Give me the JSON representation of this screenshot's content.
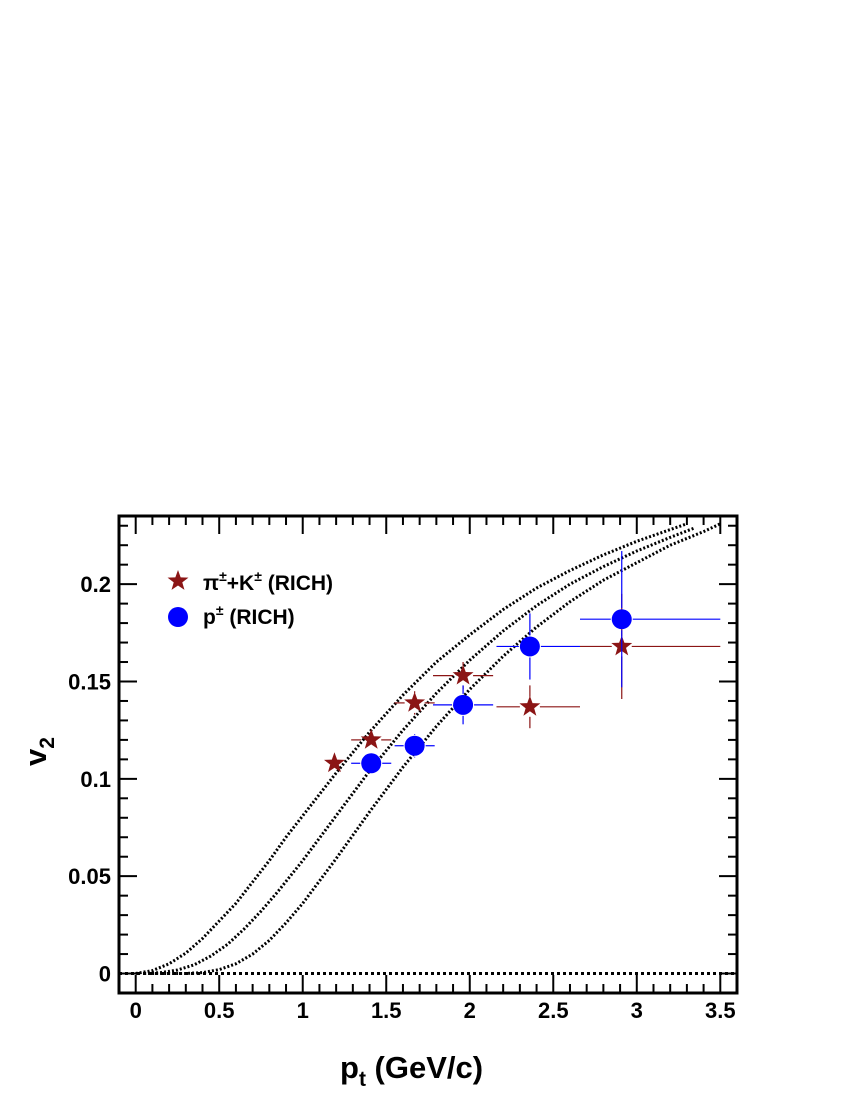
{
  "chart_data": {
    "type": "scatter",
    "title": "",
    "xlabel_main": "p",
    "xlabel_sub": "t",
    "xlabel_rest": " (GeV/c)",
    "ylabel_main": "v",
    "ylabel_sub": "2",
    "xlim": [
      -0.1,
      3.6
    ],
    "ylim": [
      -0.01,
      0.235
    ],
    "x_ticks": [
      0,
      0.5,
      1,
      1.5,
      2,
      2.5,
      3,
      3.5
    ],
    "x_tick_labels": [
      "0",
      "0.5",
      "1",
      "1.5",
      "2",
      "2.5",
      "3",
      "3.5"
    ],
    "y_ticks": [
      0,
      0.05,
      0.1,
      0.15,
      0.2
    ],
    "y_tick_labels": [
      "0",
      "0.05",
      "0.1",
      "0.15",
      "0.2"
    ],
    "grid": false,
    "legend_position": "top-left",
    "series": [
      {
        "name_main": "π",
        "name_sup1": "±",
        "name_mid": "+K",
        "name_sup2": "±",
        "name_rest": " (RICH)",
        "marker": "star",
        "color": "#8b1515",
        "points": [
          {
            "x": 1.19,
            "y": 0.108,
            "xerr": [
              0.06,
              0.06
            ],
            "yerr": 0.004
          },
          {
            "x": 1.41,
            "y": 0.12,
            "xerr": [
              0.12,
              0.12
            ],
            "yerr": 0.005
          },
          {
            "x": 1.67,
            "y": 0.139,
            "xerr": [
              0.12,
              0.12
            ],
            "yerr": 0.006
          },
          {
            "x": 1.96,
            "y": 0.153,
            "xerr": [
              0.18,
              0.18
            ],
            "yerr": 0.007
          },
          {
            "x": 2.36,
            "y": 0.137,
            "xerr": [
              0.2,
              0.3
            ],
            "yerr": 0.011
          },
          {
            "x": 2.91,
            "y": 0.168,
            "xerr": [
              0.25,
              0.59
            ],
            "yerr": 0.027
          }
        ]
      },
      {
        "name_main": "p",
        "name_sup1": "±",
        "name_rest": " (RICH)",
        "marker": "circle",
        "color": "#0000ff",
        "points": [
          {
            "x": 1.41,
            "y": 0.108,
            "xerr": [
              0.12,
              0.12
            ],
            "yerr": 0.004
          },
          {
            "x": 1.67,
            "y": 0.117,
            "xerr": [
              0.12,
              0.12
            ],
            "yerr": 0.006
          },
          {
            "x": 1.96,
            "y": 0.138,
            "xerr": [
              0.18,
              0.18
            ],
            "yerr": 0.01
          },
          {
            "x": 2.36,
            "y": 0.168,
            "xerr": [
              0.2,
              0.3
            ],
            "yerr": 0.017
          },
          {
            "x": 2.91,
            "y": 0.182,
            "xerr": [
              0.25,
              0.59
            ],
            "yerr": 0.035
          }
        ]
      }
    ],
    "curves": [
      {
        "name": "dotted-curve-1",
        "points": [
          [
            0.0,
            0.0
          ],
          [
            0.1,
            0.0015
          ],
          [
            0.2,
            0.005
          ],
          [
            0.3,
            0.0105
          ],
          [
            0.4,
            0.018
          ],
          [
            0.5,
            0.027
          ],
          [
            0.6,
            0.036
          ],
          [
            0.7,
            0.047
          ],
          [
            0.8,
            0.058
          ],
          [
            0.9,
            0.07
          ],
          [
            1.0,
            0.081
          ],
          [
            1.2,
            0.103
          ],
          [
            1.4,
            0.124
          ],
          [
            1.6,
            0.143
          ],
          [
            1.8,
            0.16
          ],
          [
            2.0,
            0.174
          ],
          [
            2.2,
            0.187
          ],
          [
            2.4,
            0.198
          ],
          [
            2.6,
            0.207
          ],
          [
            2.8,
            0.215
          ],
          [
            3.0,
            0.222
          ],
          [
            3.2,
            0.228
          ],
          [
            3.3,
            0.231
          ]
        ]
      },
      {
        "name": "dotted-curve-2",
        "points": [
          [
            0.05,
            0.0
          ],
          [
            0.15,
            0.0005
          ],
          [
            0.25,
            0.0018
          ],
          [
            0.35,
            0.0045
          ],
          [
            0.45,
            0.009
          ],
          [
            0.55,
            0.015
          ],
          [
            0.65,
            0.023
          ],
          [
            0.75,
            0.032
          ],
          [
            0.85,
            0.042
          ],
          [
            1.0,
            0.058
          ],
          [
            1.2,
            0.081
          ],
          [
            1.4,
            0.104
          ],
          [
            1.6,
            0.125
          ],
          [
            1.8,
            0.144
          ],
          [
            2.0,
            0.161
          ],
          [
            2.2,
            0.176
          ],
          [
            2.4,
            0.189
          ],
          [
            2.6,
            0.2
          ],
          [
            2.8,
            0.209
          ],
          [
            3.0,
            0.217
          ],
          [
            3.2,
            0.224
          ],
          [
            3.35,
            0.229
          ]
        ]
      },
      {
        "name": "dotted-curve-3",
        "points": [
          [
            0.05,
            0.0
          ],
          [
            0.3,
            0.0
          ],
          [
            0.4,
            0.0005
          ],
          [
            0.5,
            0.002
          ],
          [
            0.6,
            0.005
          ],
          [
            0.7,
            0.01
          ],
          [
            0.8,
            0.017
          ],
          [
            0.9,
            0.026
          ],
          [
            1.0,
            0.036
          ],
          [
            1.2,
            0.059
          ],
          [
            1.4,
            0.083
          ],
          [
            1.6,
            0.106
          ],
          [
            1.8,
            0.127
          ],
          [
            2.0,
            0.146
          ],
          [
            2.2,
            0.163
          ],
          [
            2.4,
            0.178
          ],
          [
            2.6,
            0.191
          ],
          [
            2.8,
            0.202
          ],
          [
            3.0,
            0.211
          ],
          [
            3.2,
            0.22
          ],
          [
            3.4,
            0.227
          ],
          [
            3.5,
            0.231
          ]
        ]
      }
    ]
  }
}
